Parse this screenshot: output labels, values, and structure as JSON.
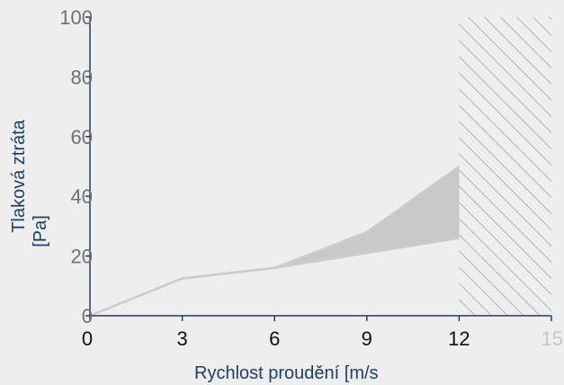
{
  "chart_data": {
    "type": "area",
    "title": "",
    "xlabel": "Rychlost proudění [m/s",
    "ylabel_lines": [
      "Tlaková ztráta",
      "[Pa]"
    ],
    "xlim": [
      0,
      15
    ],
    "ylim": [
      0,
      100
    ],
    "x_ticks": [
      "0",
      "3",
      "6",
      "9",
      "12",
      "15"
    ],
    "y_ticks": [
      "0",
      "20",
      "40",
      "60",
      "80",
      "100"
    ],
    "band": {
      "x": [
        0,
        3,
        6,
        9,
        12
      ],
      "upper": [
        0,
        12.5,
        16,
        28,
        50
      ],
      "lower": [
        0,
        12.5,
        16,
        21,
        26
      ]
    },
    "hatched_region_x": [
      12,
      15
    ],
    "colors": {
      "band_fill": "#c8c8c8",
      "band_line": "#cccccc",
      "axis": "#1e3f66",
      "hatch": "#bbbbbb"
    },
    "grid": false
  }
}
